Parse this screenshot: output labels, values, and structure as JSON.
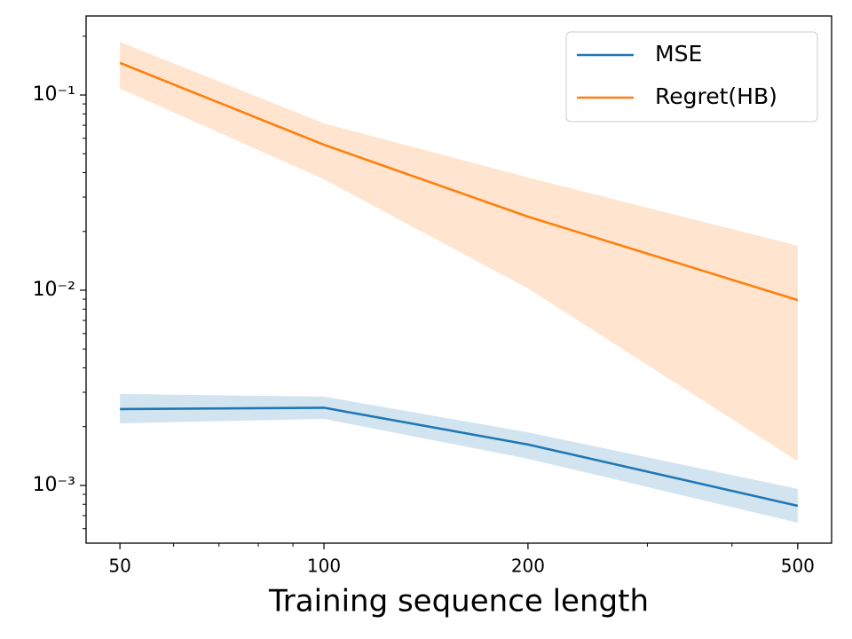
{
  "chart_data": {
    "type": "line",
    "xlabel": "Training sequence length",
    "x": [
      50,
      100,
      200,
      500
    ],
    "series": [
      {
        "name": "MSE",
        "color": "#1f77b4",
        "values": [
          0.00246,
          0.0025,
          0.00162,
          0.000786
        ],
        "lower": [
          0.00208,
          0.00219,
          0.00137,
          0.000644
        ],
        "upper": [
          0.00294,
          0.00285,
          0.00187,
          0.00096
        ]
      },
      {
        "name": "Regret(HB)",
        "color": "#ff7f0e",
        "values": [
          0.146,
          0.0556,
          0.0238,
          0.0089
        ],
        "lower": [
          0.108,
          0.037,
          0.0102,
          0.00133
        ],
        "upper": [
          0.187,
          0.0716,
          0.0378,
          0.0169
        ]
      }
    ],
    "xscale": "log",
    "yscale": "log",
    "xlim": [
      44.57,
      561.0
    ],
    "ylim": [
      0.000506,
      0.254
    ],
    "xticks": [
      50,
      100,
      200,
      500
    ],
    "yticks": [
      {
        "value": 0.001,
        "label": "10⁻³"
      },
      {
        "value": 0.01,
        "label": "10⁻²"
      },
      {
        "value": 0.1,
        "label": "10⁻¹"
      }
    ],
    "legend": "upper right",
    "band_opacity": 0.2
  }
}
